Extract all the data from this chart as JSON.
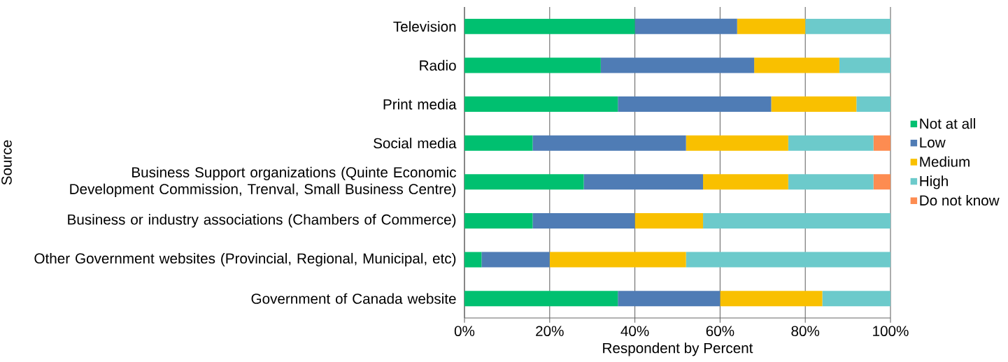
{
  "chart_data": {
    "type": "bar",
    "orientation": "horizontal",
    "stacked": true,
    "xlabel": "Respondent by Percent",
    "ylabel": "Source",
    "categories": [
      "Television",
      "Radio",
      "Print media",
      "Social media",
      "Business Support organizations  (Quinte Economic Development Commission, Trenval, Small Business Centre)",
      "Business or industry associations (Chambers of Commerce)",
      "Other Government websites (Provincial, Regional, Municipal, etc)",
      "Government of Canada website"
    ],
    "series": [
      {
        "name": "Not at all",
        "color": "#00c070",
        "values": [
          40,
          32,
          36,
          16,
          28,
          16,
          4,
          36
        ]
      },
      {
        "name": "Low",
        "color": "#4f7cb5",
        "values": [
          24,
          36,
          36,
          36,
          28,
          24,
          16,
          24
        ]
      },
      {
        "name": "Medium",
        "color": "#f9c000",
        "values": [
          16,
          20,
          20,
          24,
          20,
          16,
          32,
          24
        ]
      },
      {
        "name": "High",
        "color": "#6ccacb",
        "values": [
          20,
          12,
          8,
          20,
          20,
          44,
          48,
          16
        ]
      },
      {
        "name": "Do not know",
        "color": "#fd8c51",
        "values": [
          null,
          null,
          null,
          4,
          4,
          null,
          null,
          null
        ]
      }
    ],
    "xlim": [
      0,
      100
    ],
    "xticks": [
      {
        "value": 0,
        "label": "0%"
      },
      {
        "value": 20,
        "label": "20%"
      },
      {
        "value": 40,
        "label": "40%"
      },
      {
        "value": 60,
        "label": "60%"
      },
      {
        "value": 80,
        "label": "80%"
      },
      {
        "value": 100,
        "label": "100%"
      }
    ],
    "grid": "x",
    "legend": "right"
  }
}
